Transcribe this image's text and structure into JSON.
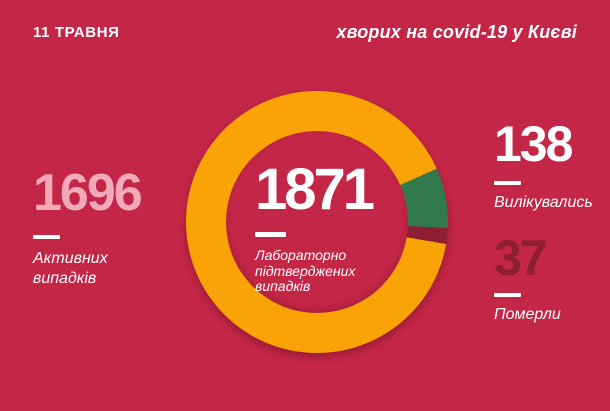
{
  "header": {
    "date": "11 ТРАВНЯ",
    "title": "хворих на covid-19 у Києві"
  },
  "stats": {
    "active": {
      "value": "1696",
      "label": "Активних випадків"
    },
    "confirmed": {
      "value": "1871",
      "label": "Лабораторно підтверджених випадків"
    },
    "recovered": {
      "value": "138",
      "label": "Вилікувались"
    },
    "died": {
      "value": "37",
      "label": "Померли"
    }
  },
  "colors": {
    "background": "#c32646",
    "active_segment": "#faa307",
    "recovered_segment": "#32794e",
    "died_segment": "#8e1e33",
    "active_text": "#f2aabb",
    "died_text": "#8d1f31",
    "text": "#ffffff"
  },
  "chart_data": {
    "type": "pie",
    "donut": true,
    "title": "хворих на covid-19 у Києві, 11 травня",
    "center_value": 1871,
    "center_label": "Лабораторно підтверджених випадків",
    "start_offset_deg": 66,
    "segments": [
      {
        "name": "Активних випадків",
        "value": 1696,
        "color": "#faa307"
      },
      {
        "name": "Вилікувались",
        "value": 138,
        "color": "#32794e"
      },
      {
        "name": "Померли",
        "value": 37,
        "color": "#8e1e33"
      }
    ]
  }
}
